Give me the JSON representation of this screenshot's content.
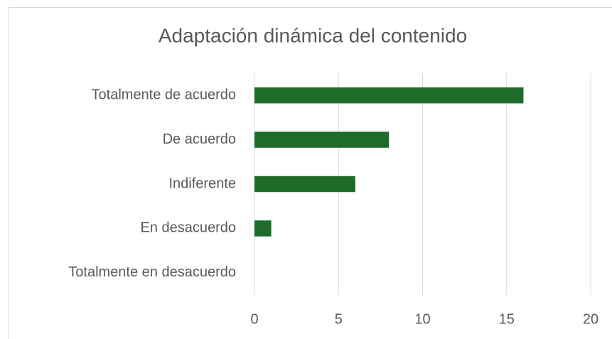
{
  "chart_data": {
    "type": "bar",
    "orientation": "horizontal",
    "title": "Adaptación dinámica del contenido",
    "categories": [
      "Totalmente de acuerdo",
      "De acuerdo",
      "Indiferente",
      "En desacuerdo",
      "Totalmente en desacuerdo"
    ],
    "values": [
      16,
      8,
      6,
      1,
      0
    ],
    "color": "#1e6b2a",
    "xlim": [
      0,
      20
    ],
    "xticks": [
      0,
      5,
      10,
      15,
      20
    ],
    "grid": true
  }
}
